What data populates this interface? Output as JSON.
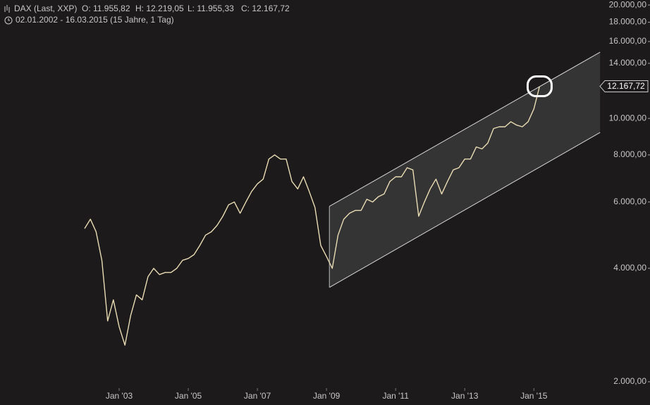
{
  "chart_data": {
    "type": "line",
    "title": "DAX (Last, XXP)",
    "open": "O: 11.955,82",
    "high": "H: 12.219,05",
    "low": "L: 11.955,33",
    "close": "C: 12.167,72",
    "subtitle": "02.01.2002 - 16.03.2015 (15 Jahre, 1 Tag)",
    "log_scale": true,
    "grid": false,
    "color": "#e9dcb4",
    "categories": [
      null,
      null,
      null,
      null,
      null,
      null,
      "Jan '03",
      null,
      null,
      null,
      null,
      null,
      null,
      null,
      null,
      null,
      null,
      null,
      "Jan '05",
      null,
      null,
      null,
      null,
      null,
      null,
      null,
      null,
      null,
      null,
      null,
      "Jan '07",
      null,
      null,
      null,
      null,
      null,
      null,
      null,
      null,
      null,
      null,
      null,
      "Jan '09",
      null,
      null,
      null,
      null,
      null,
      null,
      null,
      null,
      null,
      null,
      null,
      "Jan '11",
      null,
      null,
      null,
      null,
      null,
      null,
      null,
      null,
      null,
      null,
      null,
      "Jan '13",
      null,
      null,
      null,
      null,
      null,
      null,
      null,
      null,
      null,
      null,
      null,
      "Jan '15",
      null
    ],
    "values": [
      5100,
      5400,
      5000,
      4200,
      2900,
      3300,
      2800,
      2500,
      3000,
      3400,
      3300,
      3800,
      4000,
      3850,
      3900,
      3900,
      4000,
      4200,
      4250,
      4350,
      4600,
      4900,
      5000,
      5200,
      5500,
      5900,
      6000,
      5600,
      6000,
      6400,
      6700,
      6900,
      7800,
      8000,
      7800,
      7800,
      6800,
      6500,
      7000,
      6400,
      5800,
      4600,
      4300,
      4000,
      4900,
      5400,
      5600,
      5700,
      5700,
      6100,
      6000,
      6200,
      6300,
      6800,
      7000,
      7000,
      7400,
      7300,
      5500,
      6000,
      6500,
      6900,
      6300,
      6800,
      7300,
      7400,
      7800,
      7800,
      8400,
      8300,
      8600,
      9400,
      9500,
      9500,
      9800,
      9600,
      9500,
      9800,
      10600,
      12167.72
    ],
    "last_value_label": "12.167,72",
    "channel": {
      "upper": [
        5842,
        14994
      ],
      "lower": [
        3560,
        9177
      ]
    },
    "ylim": [
      1735,
      20620
    ],
    "yticks": [
      {
        "value": 2000,
        "label": "2.000,00"
      },
      {
        "value": 4000,
        "label": "4.000,00"
      },
      {
        "value": 6000,
        "label": "6.000,00"
      },
      {
        "value": 8000,
        "label": "8.000,00"
      },
      {
        "value": 10000,
        "label": "10.000,00"
      },
      {
        "value": 14000,
        "label": "14.000,00"
      },
      {
        "value": 16000,
        "label": "16.000,00"
      },
      {
        "value": 18000,
        "label": "18.000,00"
      },
      {
        "value": 20000,
        "label": "20.000,00"
      }
    ]
  }
}
